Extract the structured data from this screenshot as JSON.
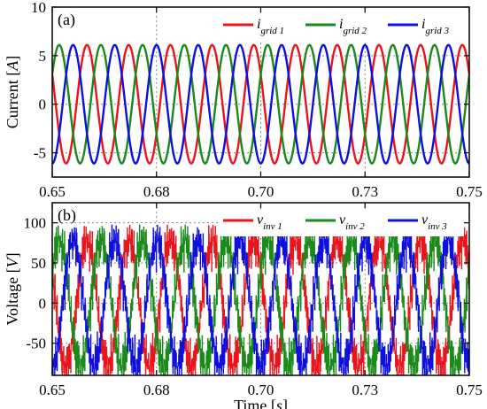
{
  "colors": {
    "phase1": "#e8161c",
    "phase2": "#1a8a1a",
    "phase3": "#1010dd",
    "grid": "#888888"
  },
  "chart_data": [
    {
      "type": "line",
      "panel_label": "(a)",
      "ylabel": "Current",
      "yunit": "A",
      "xlim": [
        0.65,
        0.75
      ],
      "ylim": [
        -7.5,
        10
      ],
      "xticks": [
        "0.65",
        "0.68",
        "0.70",
        "0.73",
        "0.75"
      ],
      "xtick_values": [
        0.65,
        0.675,
        0.7,
        0.725,
        0.75
      ],
      "yticks": [
        "-5",
        "0",
        "5",
        "10"
      ],
      "ytick_values": [
        -5,
        0,
        5,
        10
      ],
      "waveform": {
        "amplitude": 6.1,
        "frequency_hz": 100,
        "phase_deg": [
          150,
          30,
          270
        ]
      },
      "series": [
        {
          "name": "i",
          "sub": "grid 1",
          "color": "#e8161c"
        },
        {
          "name": "i",
          "sub": "grid 2",
          "color": "#1a8a1a"
        },
        {
          "name": "i",
          "sub": "grid 3",
          "color": "#1010dd"
        }
      ]
    },
    {
      "type": "line",
      "panel_label": "(b)",
      "ylabel": "Voltage",
      "yunit": "V",
      "xlabel": "Time",
      "xunit": "s",
      "xlim": [
        0.65,
        0.75
      ],
      "ylim": [
        -90,
        125
      ],
      "xticks": [
        "0.65",
        "0.68",
        "0.70",
        "0.73",
        "0.75"
      ],
      "xtick_values": [
        0.65,
        0.675,
        0.7,
        0.725,
        0.75
      ],
      "yticks": [
        "-50",
        "0",
        "50",
        "100"
      ],
      "ytick_values": [
        -50,
        0,
        50,
        100
      ],
      "waveform": {
        "amplitude": 80,
        "frequency_hz": 100,
        "phase_deg": [
          150,
          30,
          270
        ]
      },
      "series": [
        {
          "name": "v",
          "sub": "inv 1",
          "color": "#e8161c"
        },
        {
          "name": "v",
          "sub": "inv 2",
          "color": "#1a8a1a"
        },
        {
          "name": "v",
          "sub": "inv 3",
          "color": "#1010dd"
        }
      ]
    }
  ]
}
